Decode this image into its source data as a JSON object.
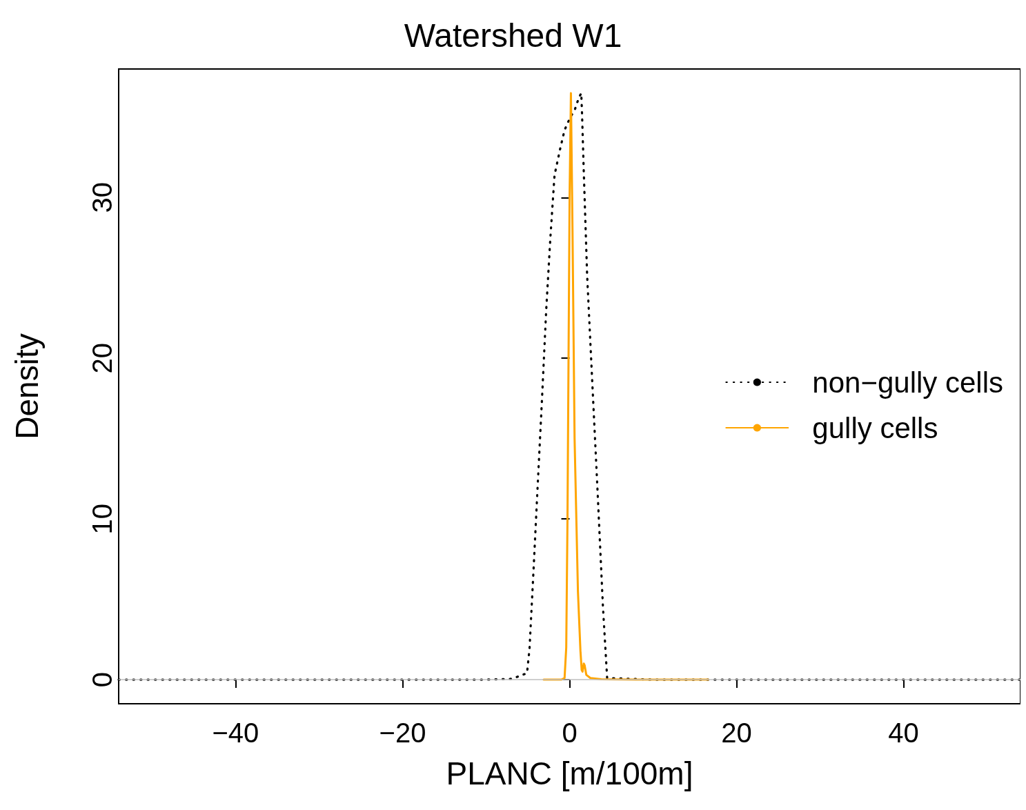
{
  "chart_data": {
    "type": "line",
    "title": "Watershed W1",
    "xlabel": "PLANC [m/100m]",
    "ylabel": "Density",
    "xlim": [
      -54,
      54
    ],
    "ylim": [
      -1.5,
      38
    ],
    "xticks": [
      -40,
      -20,
      0,
      20,
      40
    ],
    "yticks": [
      0,
      10,
      20,
      30
    ],
    "grid": false,
    "legend": "right",
    "marker": "none",
    "ref_lines": [
      {
        "axis": "y",
        "value": 0,
        "color": "#bebebe"
      }
    ],
    "series": [
      {
        "name": "non−gully cells",
        "color": "#000000",
        "line_style": "dotted",
        "x": [
          -54,
          -20,
          -10,
          -6.9,
          -5.1,
          -4.8,
          -4.3,
          -3.8,
          -3.3,
          -2.8,
          -2.3,
          -1.8,
          -1.1,
          -0.6,
          0,
          0.65,
          1.1,
          1.4,
          1.5,
          1.7,
          2.1,
          2.7,
          3.3,
          4.0,
          4.5,
          10,
          30,
          54
        ],
        "values": [
          0,
          0,
          0,
          0.05,
          0.4,
          1.9,
          7,
          12.3,
          17.5,
          23,
          27.5,
          31.4,
          33.1,
          34.2,
          34.9,
          35.5,
          36.2,
          36.5,
          35.1,
          31.6,
          25.2,
          18.7,
          12.3,
          4.5,
          0.1,
          0,
          0,
          0
        ]
      },
      {
        "name": "gully cells",
        "color": "#ffa500",
        "line_style": "solid",
        "x": [
          -3.1,
          -1,
          -0.6,
          -0.4,
          -0.25,
          0,
          0.16,
          0.35,
          0.6,
          1.0,
          1.3,
          1.45,
          1.55,
          1.7,
          1.8,
          2.0,
          2.5,
          3.8,
          8,
          16.6
        ],
        "values": [
          0,
          0,
          0.1,
          2,
          10,
          30,
          36.5,
          28,
          15,
          5.5,
          1.8,
          0.6,
          0.5,
          1.0,
          0.9,
          0.3,
          0.1,
          0.02,
          0,
          0
        ]
      }
    ]
  }
}
